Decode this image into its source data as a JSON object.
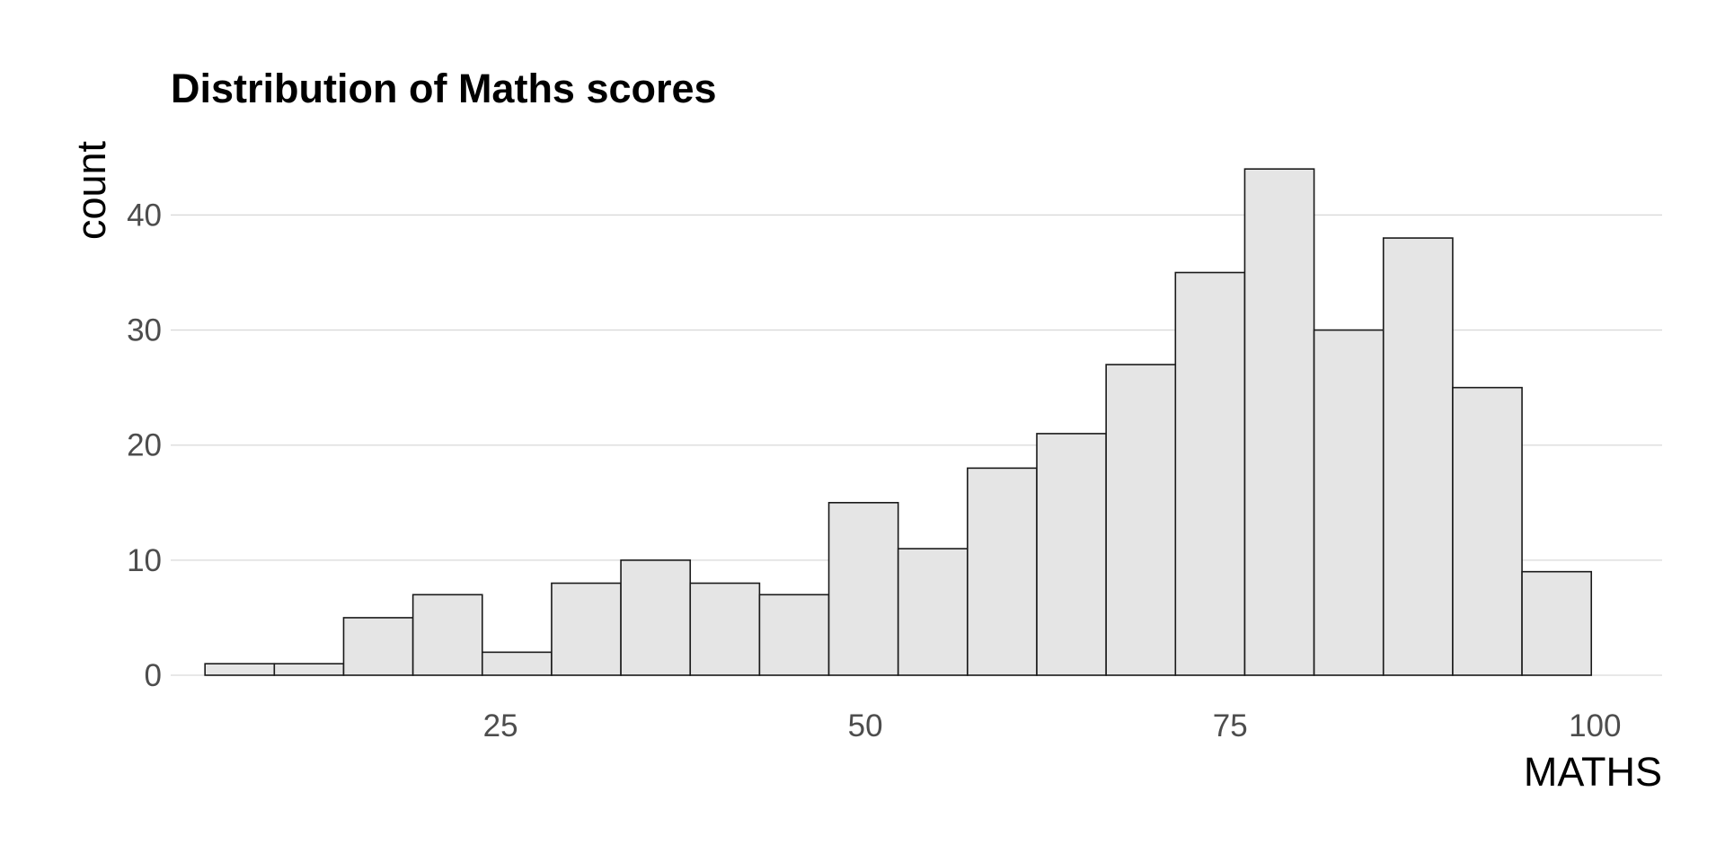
{
  "chart_data": {
    "type": "bar",
    "title": "Distribution of Maths scores",
    "xlabel": "MATHS",
    "ylabel": "count",
    "xlim": [
      2.4,
      104.6
    ],
    "ylim": [
      0,
      46.2
    ],
    "x_ticks": [
      25,
      50,
      75,
      100
    ],
    "y_ticks": [
      0,
      10,
      20,
      30,
      40
    ],
    "grid": "horizontal",
    "legend": "none",
    "bin_width": 4.75,
    "bins": [
      {
        "x0": 4.75,
        "x1": 9.5,
        "count": 1
      },
      {
        "x0": 9.5,
        "x1": 14.25,
        "count": 1
      },
      {
        "x0": 14.25,
        "x1": 19.0,
        "count": 5
      },
      {
        "x0": 19.0,
        "x1": 23.75,
        "count": 7
      },
      {
        "x0": 23.75,
        "x1": 28.5,
        "count": 2
      },
      {
        "x0": 28.5,
        "x1": 33.25,
        "count": 8
      },
      {
        "x0": 33.25,
        "x1": 38.0,
        "count": 10
      },
      {
        "x0": 38.0,
        "x1": 42.75,
        "count": 8
      },
      {
        "x0": 42.75,
        "x1": 47.5,
        "count": 7
      },
      {
        "x0": 47.5,
        "x1": 52.25,
        "count": 15
      },
      {
        "x0": 52.25,
        "x1": 57.0,
        "count": 11
      },
      {
        "x0": 57.0,
        "x1": 61.75,
        "count": 18
      },
      {
        "x0": 61.75,
        "x1": 66.5,
        "count": 21
      },
      {
        "x0": 66.5,
        "x1": 71.25,
        "count": 27
      },
      {
        "x0": 71.25,
        "x1": 76.0,
        "count": 35
      },
      {
        "x0": 76.0,
        "x1": 80.75,
        "count": 44
      },
      {
        "x0": 80.75,
        "x1": 85.5,
        "count": 30
      },
      {
        "x0": 85.5,
        "x1": 90.25,
        "count": 38
      },
      {
        "x0": 90.25,
        "x1": 95.0,
        "count": 25
      },
      {
        "x0": 95.0,
        "x1": 99.75,
        "count": 9
      }
    ],
    "colors": {
      "bar_fill": "#e5e5e5",
      "bar_stroke": "#1a1a1a"
    }
  }
}
